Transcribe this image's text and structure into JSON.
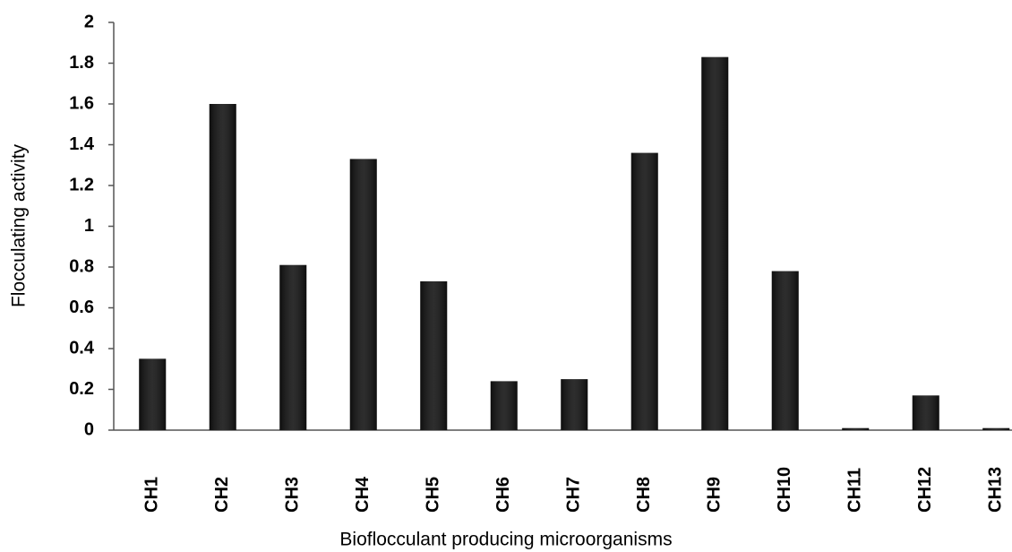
{
  "chart_data": {
    "type": "bar",
    "xlabel": "Bioflocculant producing microorganisms",
    "ylabel": "Flocculating activity",
    "categories": [
      "CH1",
      "CH2",
      "CH3",
      "CH4",
      "CH5",
      "CH6",
      "CH7",
      "CH8",
      "CH9",
      "CH10",
      "CH11",
      "CH12",
      "CH13"
    ],
    "values": [
      0.35,
      1.6,
      0.81,
      1.33,
      0.73,
      0.24,
      0.25,
      1.36,
      1.83,
      0.78,
      0.01,
      0.17,
      0.01
    ],
    "color": "#111111",
    "ylim": [
      0,
      2
    ],
    "yticks": [
      0,
      0.2,
      0.4,
      0.6,
      0.8,
      1,
      1.2,
      1.4,
      1.6,
      1.8,
      2
    ],
    "grid": false
  }
}
